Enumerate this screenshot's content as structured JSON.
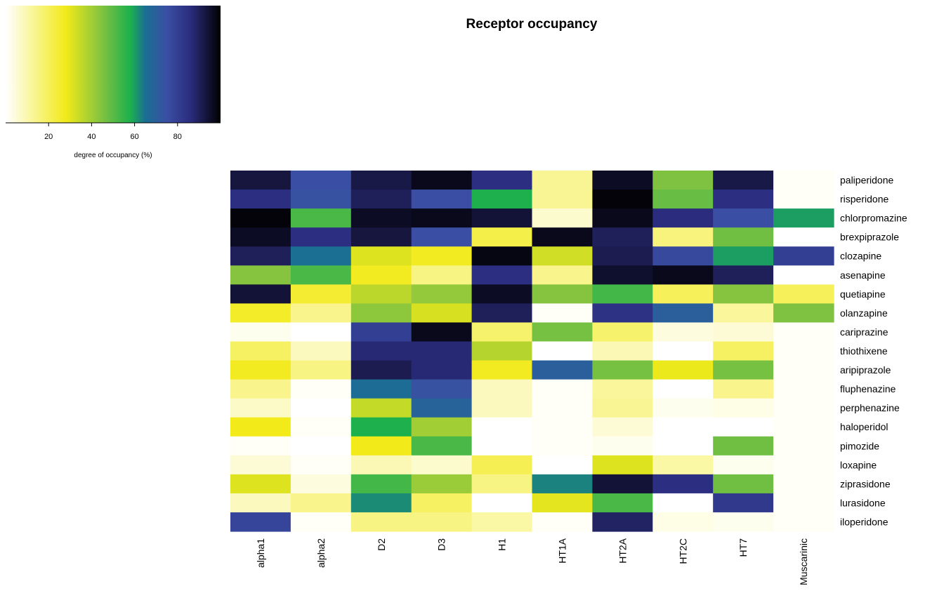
{
  "chart_data": {
    "type": "heatmap",
    "title": "Receptor occupancy",
    "x_categories": [
      "alpha1",
      "alpha2",
      "D2",
      "D3",
      "H1",
      "HT1A",
      "HT2A",
      "HT2C",
      "HT7",
      "Muscarinic"
    ],
    "y_categories": [
      "paliperidone",
      "risperidone",
      "chlorpromazine",
      "brexpiprazole",
      "clozapine",
      "asenapine",
      "quetiapine",
      "olanzapine",
      "cariprazine",
      "thiothixene",
      "aripiprazole",
      "fluphenazine",
      "perphenazine",
      "haloperidol",
      "pimozide",
      "loxapine",
      "ziprasidone",
      "lurasidone",
      "iloperidone"
    ],
    "values": [
      [
        93,
        75,
        92,
        97,
        85,
        13,
        96,
        45,
        92,
        1
      ],
      [
        85,
        74,
        90,
        75,
        58,
        13,
        99,
        48,
        85,
        1
      ],
      [
        99,
        52,
        96,
        97,
        94,
        6,
        97,
        86,
        75,
        60
      ],
      [
        96,
        85,
        93,
        75,
        22,
        97,
        90,
        16,
        47,
        0
      ],
      [
        90,
        65,
        31,
        27,
        98,
        33,
        91,
        77,
        60,
        80
      ],
      [
        44,
        52,
        27,
        15,
        85,
        14,
        95,
        97,
        90,
        0
      ],
      [
        94,
        25,
        36,
        42,
        96,
        44,
        53,
        20,
        44,
        20
      ],
      [
        26,
        14,
        43,
        32,
        90,
        1,
        84,
        70,
        12,
        45
      ],
      [
        2,
        0,
        80,
        97,
        18,
        46,
        18,
        4,
        5,
        1
      ],
      [
        19,
        8,
        87,
        87,
        37,
        0,
        9,
        0,
        19,
        1
      ],
      [
        27,
        15,
        91,
        87,
        27,
        70,
        46,
        29,
        46,
        1
      ],
      [
        14,
        1,
        66,
        74,
        8,
        1,
        12,
        0,
        14,
        1
      ],
      [
        7,
        0,
        35,
        69,
        8,
        1,
        13,
        2,
        3,
        1
      ],
      [
        28,
        1,
        58,
        40,
        0,
        1,
        5,
        0,
        0,
        1
      ],
      [
        1,
        0,
        28,
        52,
        0,
        1,
        2,
        0,
        47,
        1
      ],
      [
        5,
        1,
        9,
        6,
        21,
        0,
        31,
        11,
        2,
        1
      ],
      [
        31,
        4,
        53,
        41,
        15,
        63,
        94,
        85,
        47,
        1
      ],
      [
        8,
        14,
        62,
        19,
        0,
        30,
        52,
        0,
        82,
        1
      ],
      [
        78,
        1,
        15,
        15,
        11,
        1,
        89,
        3,
        2,
        1
      ]
    ],
    "colorbar": {
      "label": "degree of occupancy (%)",
      "range": [
        0,
        100
      ],
      "ticks": [
        20,
        40,
        60,
        80
      ],
      "stops": [
        {
          "v": 0,
          "color": "#ffffff"
        },
        {
          "v": 28,
          "color": "#f2ea19"
        },
        {
          "v": 45,
          "color": "#7fc241"
        },
        {
          "v": 58,
          "color": "#1db04d"
        },
        {
          "v": 65,
          "color": "#1a6f93"
        },
        {
          "v": 75,
          "color": "#3a4fa3"
        },
        {
          "v": 86,
          "color": "#2b2c7e"
        },
        {
          "v": 100,
          "color": "#000000"
        }
      ]
    }
  }
}
